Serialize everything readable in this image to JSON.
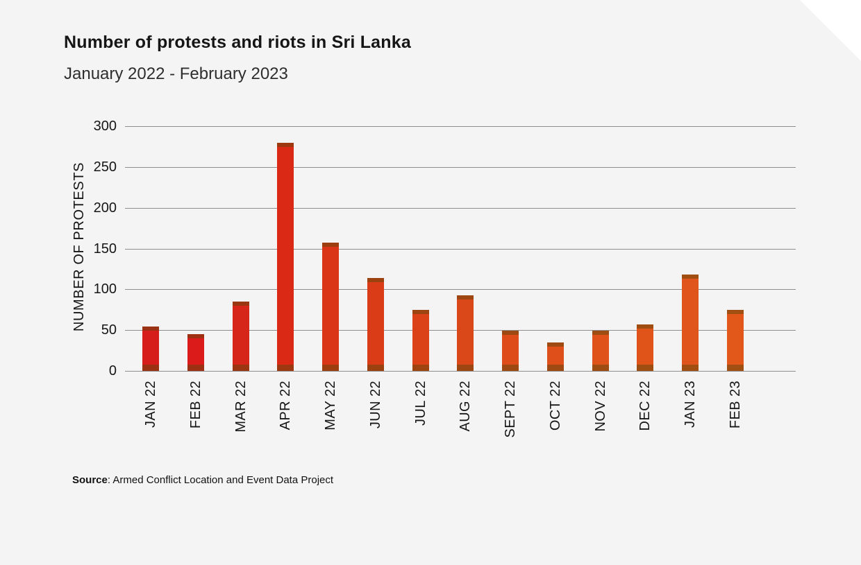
{
  "page": {
    "background_color": "#f4f4f5",
    "corner_fold_color": "#ffffff"
  },
  "header": {
    "title": "Number of protests and riots in Sri Lanka",
    "subtitle": "January 2022 - February 2023"
  },
  "chart_data": {
    "type": "bar",
    "title": "Number of protests and riots in Sri Lanka",
    "subtitle": "January 2022 - February 2023",
    "categories": [
      "JAN 22",
      "FEB 22",
      "MAR 22",
      "APR 22",
      "MAY 22",
      "JUN 22",
      "JUL 22",
      "AUG 22",
      "SEPT 22",
      "OCT 22",
      "NOV 22",
      "DEC 22",
      "JAN 23",
      "FEB 23"
    ],
    "values": [
      54,
      45,
      85,
      280,
      157,
      114,
      75,
      93,
      49,
      35,
      49,
      57,
      118,
      75
    ],
    "xlabel": "",
    "ylabel": "NUMBER OF PROTESTS",
    "ylim": [
      0,
      300
    ],
    "yticks": [
      0,
      50,
      100,
      150,
      200,
      250,
      300
    ],
    "grid": true,
    "gridline_color": "#8d8d8d",
    "legend_position": "none",
    "bar_colors": [
      "#d71c1c",
      "#da1b1a",
      "#d62619",
      "#da2a16",
      "#db3517",
      "#d93c17",
      "#db4218",
      "#da4719",
      "#dd4c19",
      "#de4f19",
      "#df521a",
      "#e0541a",
      "#e0551b",
      "#e2581b"
    ],
    "bar_edge_overlay": "rgba(96,70,10,0.5)"
  },
  "footer": {
    "source_label": "Source",
    "source_text": ": Armed Conflict Location and Event Data Project"
  }
}
